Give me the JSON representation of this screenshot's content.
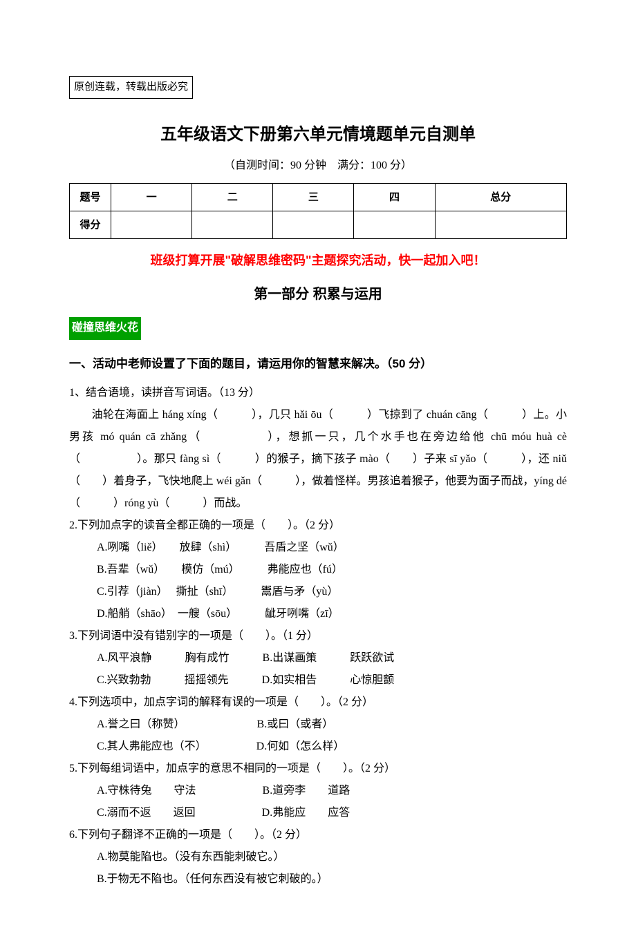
{
  "notice": "原创连载，转载出版必究",
  "title": "五年级语文下册第六单元情境题单元自测单",
  "subtitle": "（自测时间：90 分钟　满分：100 分）",
  "score_table": {
    "headers": [
      "题号",
      "一",
      "二",
      "三",
      "四",
      "总分"
    ],
    "row2_label": "得分"
  },
  "activity_line": "班级打算开展\"破解思维密码\"主题探究活动，快一起加入吧！",
  "section_title": "第一部分 积累与运用",
  "tag": "碰撞思维火花",
  "heading": "一、活动中老师设置了下面的题目，请运用你的智慧来解决。（50 分）",
  "q1": {
    "prompt": "1、结合语境，读拼音写词语。（13 分）",
    "body": "　　油轮在海面上 háng xíng（　　　），几只 hǎi ōu（　　　）飞掠到了 chuán cāng（　　　）上。小男孩 mó quán cā zhǎng（　　　　　），想抓一只，几个水手也在旁边给他 chū móu huà cè（　　　　　）。那只 fàng sì（　　　）的猴子，摘下孩子 mào（　　）子来 sī yǎo（　　　），还 niǔ（　　）着身子，飞快地爬上 wéi gǎn（　　　），做着怪样。男孩追着猴子，他要为面子而战，yíng dé（　　　）róng yù（　　　）而战。"
  },
  "q2": {
    "prompt": "2.下列加点字的读音全都正确的一项是（　　）。（2 分）",
    "opts": [
      "A.咧嘴（liě）　　放肆（shì）　　　吾盾之坚（wǔ）",
      "B.吾辈（wǔ）　　模仿（mú）　　　弗能应也（fú）",
      "C.引荐（jiàn）　 撕扯（shī）　　　鬻盾与矛（yù）",
      "D.船艄（shāo）　一艘（sōu）　　　龇牙咧嘴（zī）"
    ]
  },
  "q3": {
    "prompt": "3.下列词语中没有错别字的一项是（　　）。（1 分）",
    "opts": [
      "A.风平浪静　　　胸有成竹　　　B.出谋画策　　　跃跃欲试",
      "C.兴致勃勃　　　摇摇领先　　　D.如实相告　　　心惊胆颤"
    ]
  },
  "q4": {
    "prompt": "4.下列选项中，加点字词的解释有误的一项是（　　）。（2 分）",
    "opts": [
      "A.誉之曰（称赞）　　　　　　　B.或曰（或者）",
      "C.其人弗能应也（不）　　　　　D.何如（怎么样）"
    ]
  },
  "q5": {
    "prompt": "5.下列每组词语中，加点字的意思不相同的一项是（　　）。（2 分）",
    "opts": [
      "A.守株待兔　　守法　　　　　　B.道旁李　　道路",
      "C.溺而不返　　返回　　　　　　D.弗能应　　应答"
    ]
  },
  "q6": {
    "prompt": "6.下列句子翻译不正确的一项是（　　）。（2 分）",
    "opts": [
      "A.物莫能陷也。（没有东西能刺破它。）",
      "B.于物无不陷也。（任何东西没有被它刺破的。）"
    ]
  },
  "colors": {
    "text": "#000000",
    "red": "#ff0000",
    "tag_bg": "#00a000",
    "tag_fg": "#ffffff",
    "background": "#ffffff"
  }
}
